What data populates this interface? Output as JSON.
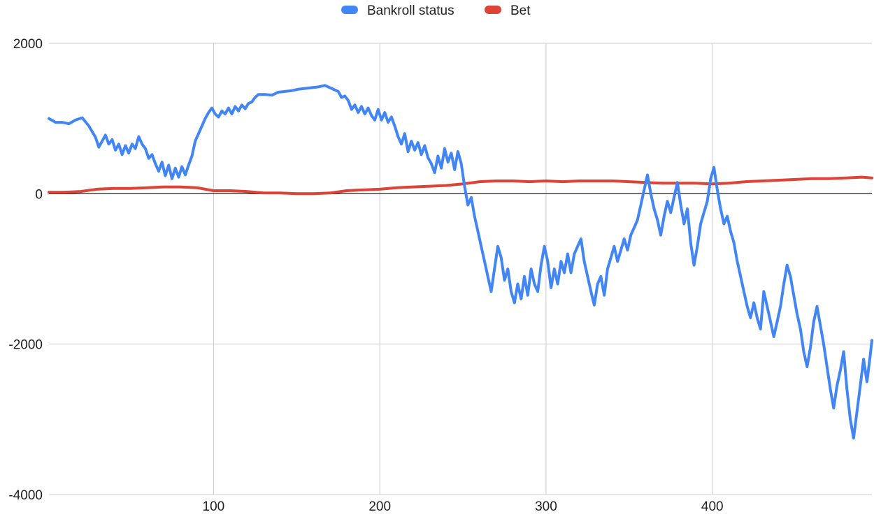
{
  "chart_data": {
    "type": "line",
    "legend_position": "top-center",
    "grid": true,
    "xlim": [
      1,
      496
    ],
    "ylim": [
      -4000,
      2000
    ],
    "x_ticks": [
      100,
      200,
      300,
      400
    ],
    "y_ticks": [
      2000,
      0,
      -2000,
      -4000
    ],
    "x_tick_labels": [
      "100",
      "200",
      "300",
      "400"
    ],
    "y_tick_labels": [
      "2000",
      "0",
      "-2000",
      "-4000"
    ],
    "series": [
      {
        "name": "Bankroll status",
        "color": "#4285f4",
        "points": [
          [
            1,
            1000
          ],
          [
            5,
            950
          ],
          [
            9,
            950
          ],
          [
            13,
            930
          ],
          [
            17,
            980
          ],
          [
            21,
            1010
          ],
          [
            25,
            900
          ],
          [
            29,
            750
          ],
          [
            31,
            620
          ],
          [
            33,
            700
          ],
          [
            35,
            780
          ],
          [
            37,
            660
          ],
          [
            39,
            720
          ],
          [
            41,
            580
          ],
          [
            43,
            660
          ],
          [
            45,
            520
          ],
          [
            47,
            640
          ],
          [
            49,
            540
          ],
          [
            51,
            660
          ],
          [
            53,
            600
          ],
          [
            55,
            760
          ],
          [
            57,
            660
          ],
          [
            59,
            600
          ],
          [
            61,
            470
          ],
          [
            63,
            520
          ],
          [
            65,
            400
          ],
          [
            67,
            300
          ],
          [
            69,
            420
          ],
          [
            71,
            240
          ],
          [
            73,
            380
          ],
          [
            75,
            200
          ],
          [
            77,
            340
          ],
          [
            79,
            220
          ],
          [
            81,
            360
          ],
          [
            83,
            250
          ],
          [
            85,
            380
          ],
          [
            87,
            500
          ],
          [
            89,
            700
          ],
          [
            91,
            800
          ],
          [
            93,
            900
          ],
          [
            95,
            1000
          ],
          [
            97,
            1080
          ],
          [
            99,
            1140
          ],
          [
            101,
            1060
          ],
          [
            103,
            1020
          ],
          [
            105,
            1100
          ],
          [
            107,
            1060
          ],
          [
            109,
            1140
          ],
          [
            111,
            1060
          ],
          [
            113,
            1160
          ],
          [
            115,
            1100
          ],
          [
            117,
            1180
          ],
          [
            119,
            1130
          ],
          [
            121,
            1200
          ],
          [
            123,
            1220
          ],
          [
            125,
            1280
          ],
          [
            127,
            1320
          ],
          [
            131,
            1320
          ],
          [
            135,
            1310
          ],
          [
            139,
            1350
          ],
          [
            143,
            1360
          ],
          [
            147,
            1370
          ],
          [
            151,
            1390
          ],
          [
            155,
            1400
          ],
          [
            159,
            1410
          ],
          [
            163,
            1420
          ],
          [
            167,
            1440
          ],
          [
            171,
            1400
          ],
          [
            175,
            1360
          ],
          [
            177,
            1280
          ],
          [
            179,
            1300
          ],
          [
            181,
            1240
          ],
          [
            183,
            1120
          ],
          [
            185,
            1180
          ],
          [
            187,
            1080
          ],
          [
            189,
            1160
          ],
          [
            191,
            1060
          ],
          [
            193,
            1140
          ],
          [
            195,
            1040
          ],
          [
            197,
            980
          ],
          [
            199,
            1120
          ],
          [
            201,
            980
          ],
          [
            203,
            1080
          ],
          [
            205,
            950
          ],
          [
            207,
            1020
          ],
          [
            209,
            900
          ],
          [
            211,
            760
          ],
          [
            213,
            660
          ],
          [
            215,
            800
          ],
          [
            217,
            560
          ],
          [
            219,
            700
          ],
          [
            221,
            580
          ],
          [
            223,
            680
          ],
          [
            225,
            520
          ],
          [
            227,
            640
          ],
          [
            229,
            480
          ],
          [
            231,
            400
          ],
          [
            233,
            280
          ],
          [
            235,
            500
          ],
          [
            237,
            340
          ],
          [
            239,
            600
          ],
          [
            241,
            420
          ],
          [
            243,
            540
          ],
          [
            245,
            320
          ],
          [
            247,
            560
          ],
          [
            249,
            400
          ],
          [
            251,
            100
          ],
          [
            253,
            -150
          ],
          [
            255,
            -50
          ],
          [
            257,
            -300
          ],
          [
            259,
            -500
          ],
          [
            261,
            -700
          ],
          [
            263,
            -900
          ],
          [
            265,
            -1100
          ],
          [
            267,
            -1300
          ],
          [
            269,
            -1000
          ],
          [
            271,
            -700
          ],
          [
            273,
            -850
          ],
          [
            275,
            -1150
          ],
          [
            277,
            -1000
          ],
          [
            279,
            -1300
          ],
          [
            281,
            -1450
          ],
          [
            283,
            -1200
          ],
          [
            285,
            -1400
          ],
          [
            287,
            -1100
          ],
          [
            289,
            -1350
          ],
          [
            291,
            -1000
          ],
          [
            293,
            -1200
          ],
          [
            295,
            -1300
          ],
          [
            297,
            -950
          ],
          [
            299,
            -700
          ],
          [
            301,
            -900
          ],
          [
            303,
            -1250
          ],
          [
            305,
            -1000
          ],
          [
            307,
            -1200
          ],
          [
            309,
            -900
          ],
          [
            311,
            -1050
          ],
          [
            313,
            -800
          ],
          [
            315,
            -1050
          ],
          [
            317,
            -800
          ],
          [
            319,
            -700
          ],
          [
            321,
            -600
          ],
          [
            323,
            -900
          ],
          [
            325,
            -1100
          ],
          [
            327,
            -1300
          ],
          [
            329,
            -1480
          ],
          [
            331,
            -1200
          ],
          [
            333,
            -1100
          ],
          [
            335,
            -1350
          ],
          [
            337,
            -1000
          ],
          [
            339,
            -850
          ],
          [
            341,
            -700
          ],
          [
            343,
            -900
          ],
          [
            345,
            -750
          ],
          [
            347,
            -600
          ],
          [
            349,
            -750
          ],
          [
            351,
            -550
          ],
          [
            353,
            -450
          ],
          [
            355,
            -350
          ],
          [
            357,
            -150
          ],
          [
            359,
            50
          ],
          [
            361,
            250
          ],
          [
            363,
            0
          ],
          [
            365,
            -200
          ],
          [
            367,
            -350
          ],
          [
            369,
            -550
          ],
          [
            371,
            -300
          ],
          [
            373,
            -100
          ],
          [
            375,
            -250
          ],
          [
            377,
            -50
          ],
          [
            379,
            150
          ],
          [
            381,
            -150
          ],
          [
            383,
            -400
          ],
          [
            385,
            -200
          ],
          [
            387,
            -650
          ],
          [
            389,
            -950
          ],
          [
            391,
            -700
          ],
          [
            393,
            -400
          ],
          [
            395,
            -250
          ],
          [
            397,
            -100
          ],
          [
            399,
            200
          ],
          [
            401,
            350
          ],
          [
            403,
            50
          ],
          [
            405,
            -200
          ],
          [
            407,
            -400
          ],
          [
            409,
            -300
          ],
          [
            411,
            -500
          ],
          [
            413,
            -650
          ],
          [
            415,
            -900
          ],
          [
            417,
            -1100
          ],
          [
            419,
            -1300
          ],
          [
            421,
            -1500
          ],
          [
            423,
            -1650
          ],
          [
            425,
            -1450
          ],
          [
            427,
            -1650
          ],
          [
            429,
            -1800
          ],
          [
            431,
            -1300
          ],
          [
            433,
            -1500
          ],
          [
            435,
            -1700
          ],
          [
            437,
            -1900
          ],
          [
            439,
            -1700
          ],
          [
            441,
            -1500
          ],
          [
            443,
            -1200
          ],
          [
            445,
            -950
          ],
          [
            447,
            -1100
          ],
          [
            449,
            -1350
          ],
          [
            451,
            -1600
          ],
          [
            453,
            -1800
          ],
          [
            455,
            -2100
          ],
          [
            457,
            -2300
          ],
          [
            459,
            -2050
          ],
          [
            461,
            -1700
          ],
          [
            463,
            -1500
          ],
          [
            465,
            -1750
          ],
          [
            467,
            -2000
          ],
          [
            469,
            -2300
          ],
          [
            471,
            -2600
          ],
          [
            473,
            -2850
          ],
          [
            475,
            -2550
          ],
          [
            477,
            -2350
          ],
          [
            479,
            -2100
          ],
          [
            481,
            -2600
          ],
          [
            483,
            -3000
          ],
          [
            485,
            -3250
          ],
          [
            487,
            -2900
          ],
          [
            489,
            -2550
          ],
          [
            491,
            -2200
          ],
          [
            493,
            -2500
          ],
          [
            495,
            -2150
          ],
          [
            496,
            -1950
          ]
        ]
      },
      {
        "name": "Bet",
        "color": "#db4437",
        "points": [
          [
            1,
            20
          ],
          [
            10,
            20
          ],
          [
            20,
            30
          ],
          [
            30,
            60
          ],
          [
            40,
            70
          ],
          [
            50,
            70
          ],
          [
            60,
            80
          ],
          [
            70,
            90
          ],
          [
            80,
            90
          ],
          [
            90,
            80
          ],
          [
            100,
            40
          ],
          [
            110,
            40
          ],
          [
            120,
            30
          ],
          [
            130,
            10
          ],
          [
            140,
            10
          ],
          [
            150,
            0
          ],
          [
            160,
            0
          ],
          [
            170,
            10
          ],
          [
            180,
            40
          ],
          [
            190,
            50
          ],
          [
            200,
            60
          ],
          [
            210,
            80
          ],
          [
            220,
            90
          ],
          [
            230,
            100
          ],
          [
            240,
            110
          ],
          [
            250,
            130
          ],
          [
            260,
            160
          ],
          [
            270,
            170
          ],
          [
            280,
            170
          ],
          [
            290,
            160
          ],
          [
            300,
            170
          ],
          [
            310,
            160
          ],
          [
            320,
            170
          ],
          [
            330,
            170
          ],
          [
            340,
            170
          ],
          [
            350,
            160
          ],
          [
            360,
            150
          ],
          [
            370,
            140
          ],
          [
            380,
            140
          ],
          [
            390,
            140
          ],
          [
            400,
            130
          ],
          [
            410,
            140
          ],
          [
            420,
            160
          ],
          [
            430,
            170
          ],
          [
            440,
            180
          ],
          [
            450,
            190
          ],
          [
            460,
            200
          ],
          [
            470,
            200
          ],
          [
            480,
            210
          ],
          [
            490,
            220
          ],
          [
            496,
            210
          ]
        ]
      }
    ]
  }
}
